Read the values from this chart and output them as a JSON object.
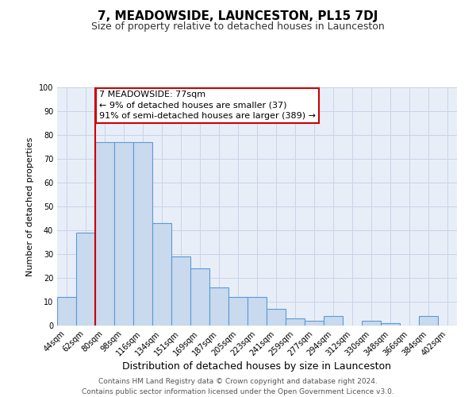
{
  "title": "7, MEADOWSIDE, LAUNCESTON, PL15 7DJ",
  "subtitle": "Size of property relative to detached houses in Launceston",
  "xlabel": "Distribution of detached houses by size in Launceston",
  "ylabel": "Number of detached properties",
  "footer_line1": "Contains HM Land Registry data © Crown copyright and database right 2024.",
  "footer_line2": "Contains public sector information licensed under the Open Government Licence v3.0.",
  "annotation_line1": "7 MEADOWSIDE: 77sqm",
  "annotation_line2": "← 9% of detached houses are smaller (37)",
  "annotation_line3": "91% of semi-detached houses are larger (389) →",
  "bar_edge_color": "#5b9bd5",
  "bar_face_color": "#c9d9ee",
  "grid_color": "#c8d4e8",
  "fig_background_color": "#ffffff",
  "plot_background_color": "#e8eef8",
  "vline_color": "#cc0000",
  "vline_x_index": 2,
  "categories": [
    "44sqm",
    "62sqm",
    "80sqm",
    "98sqm",
    "116sqm",
    "134sqm",
    "151sqm",
    "169sqm",
    "187sqm",
    "205sqm",
    "223sqm",
    "241sqm",
    "259sqm",
    "277sqm",
    "294sqm",
    "312sqm",
    "330sqm",
    "348sqm",
    "366sqm",
    "384sqm",
    "402sqm"
  ],
  "values": [
    12,
    39,
    77,
    77,
    77,
    43,
    29,
    24,
    16,
    12,
    12,
    7,
    3,
    2,
    4,
    0,
    2,
    1,
    0,
    4,
    0
  ],
  "ylim": [
    0,
    100
  ],
  "yticks": [
    0,
    10,
    20,
    30,
    40,
    50,
    60,
    70,
    80,
    90,
    100
  ],
  "title_fontsize": 11,
  "subtitle_fontsize": 9,
  "ylabel_fontsize": 8,
  "xlabel_fontsize": 9,
  "tick_fontsize": 7,
  "footer_fontsize": 6.5,
  "annot_fontsize": 8
}
